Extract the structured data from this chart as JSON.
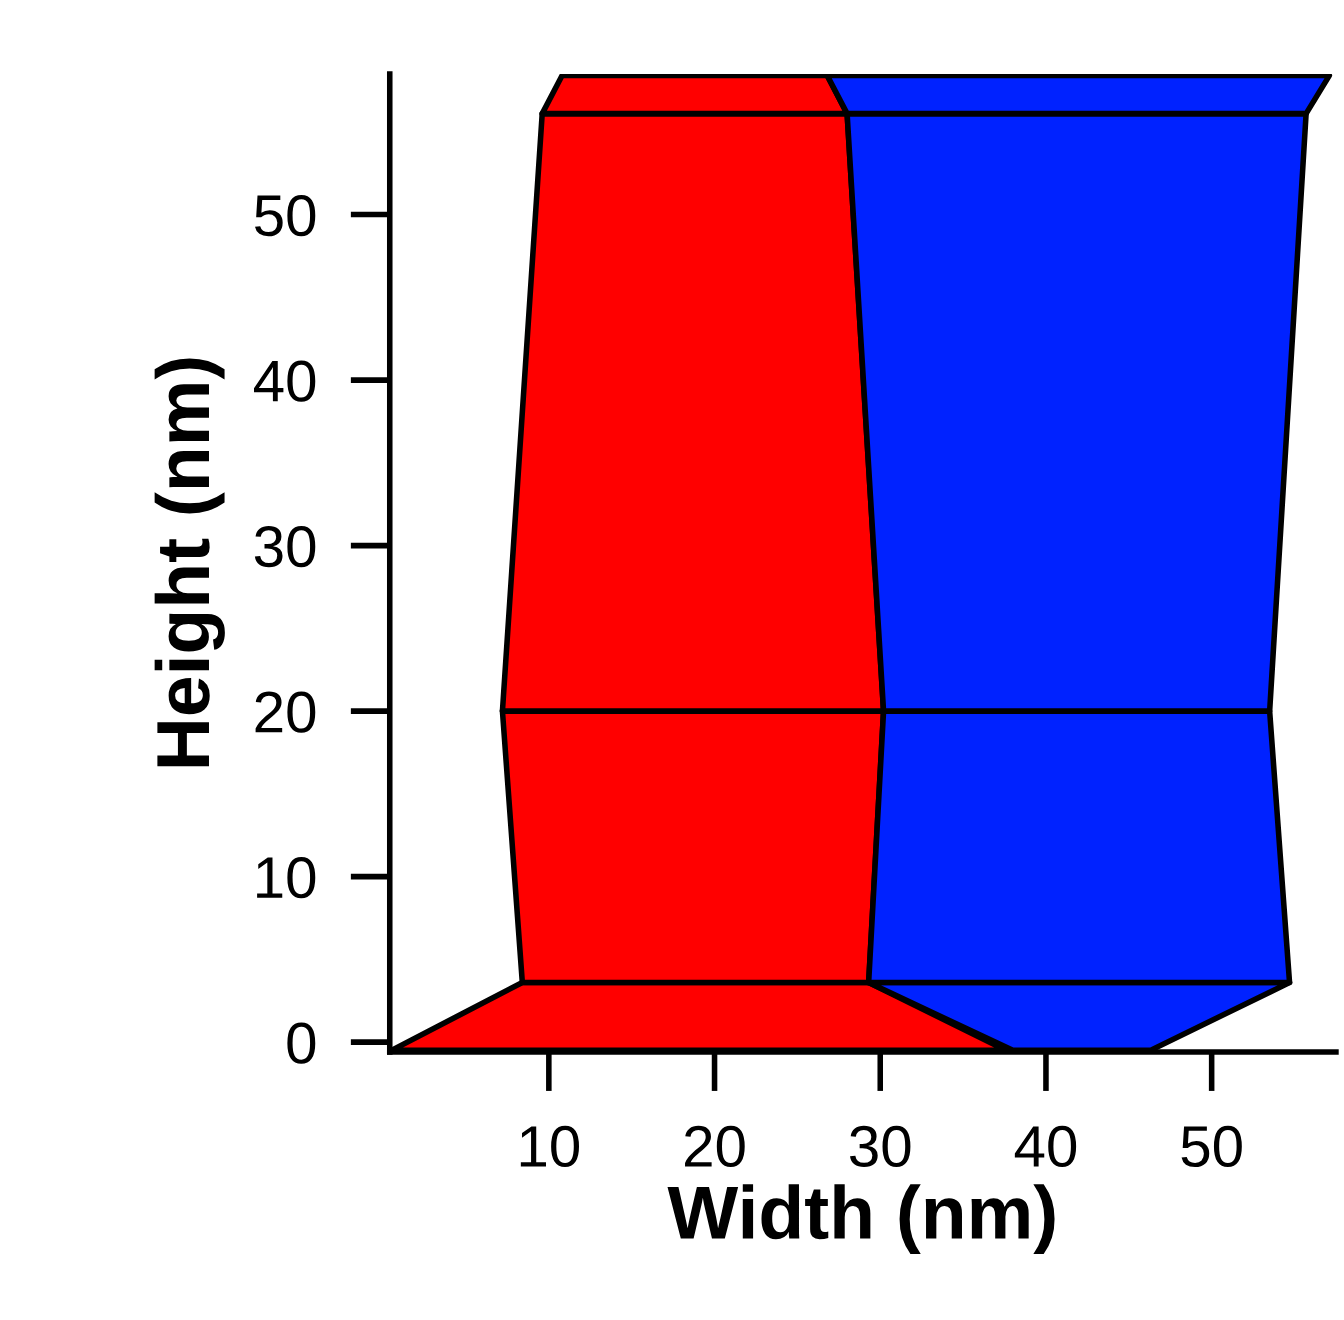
{
  "chart_data": {
    "type": "area",
    "xlabel": "Width (nm)",
    "ylabel": "Height (nm)",
    "xlim": [
      0.4,
      57.5
    ],
    "ylim": [
      -0.6,
      58.5
    ],
    "xticks": [
      10,
      20,
      30,
      40,
      50
    ],
    "yticks": [
      0,
      10,
      20,
      30,
      40,
      50
    ],
    "grid": false,
    "series": [
      {
        "color": "#ff0000",
        "x": [
          0.5,
          37.6,
          29.3,
          8.4
        ],
        "values": [
          -0.5,
          -0.5,
          3.6,
          3.6
        ]
      },
      {
        "color": "#0022ff",
        "x": [
          38.0,
          46.3,
          54.7,
          29.3
        ],
        "values": [
          -0.5,
          -0.5,
          3.6,
          3.6
        ]
      },
      {
        "color": "#ff0000",
        "x": [
          8.4,
          29.3,
          30.2,
          7.2
        ],
        "values": [
          3.6,
          3.6,
          20,
          20
        ]
      },
      {
        "color": "#0022ff",
        "x": [
          29.3,
          54.7,
          53.5,
          30.2
        ],
        "values": [
          3.6,
          3.6,
          20,
          20
        ]
      },
      {
        "color": "#ff0000",
        "x": [
          7.2,
          30.2,
          28.0,
          9.6
        ],
        "values": [
          20,
          20,
          56.1,
          56.1
        ]
      },
      {
        "color": "#0022ff",
        "x": [
          30.2,
          53.5,
          55.7,
          28.0
        ],
        "values": [
          20,
          20,
          56.1,
          56.1
        ]
      },
      {
        "color": "#ff0000",
        "x": [
          9.6,
          28.0,
          26.8,
          10.8
        ],
        "values": [
          56.1,
          56.1,
          58.4,
          58.4
        ]
      },
      {
        "color": "#0022ff",
        "x": [
          28.0,
          55.7,
          57.1,
          26.8
        ],
        "values": [
          56.1,
          56.1,
          58.4,
          58.4
        ]
      }
    ]
  }
}
